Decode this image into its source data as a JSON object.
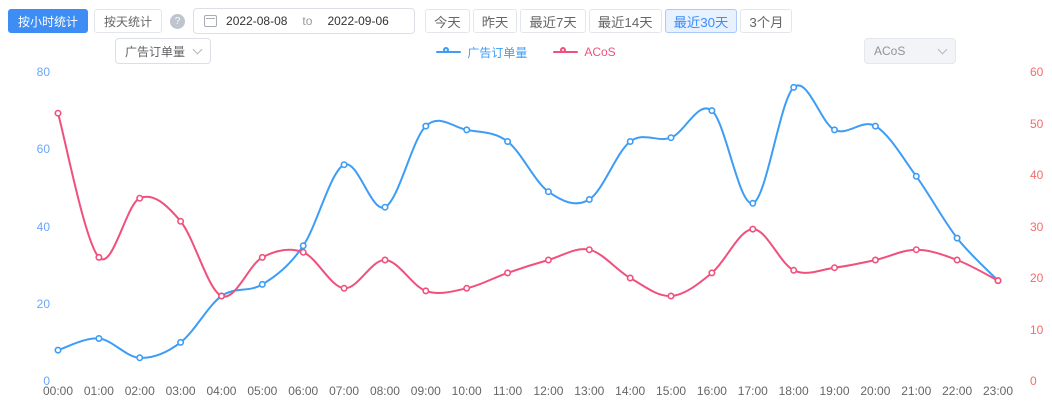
{
  "page": {
    "background": "#ffffff",
    "accent": "#3d8df5"
  },
  "toolbar": {
    "mode_buttons": [
      {
        "label": "按小时统计",
        "active": true
      },
      {
        "label": "按天统计",
        "active": false
      }
    ],
    "help_icon": "?",
    "date_range": {
      "start": "2022-08-08",
      "separator": "to",
      "end": "2022-09-06"
    },
    "quick_ranges": [
      {
        "label": "今天",
        "active": false
      },
      {
        "label": "昨天",
        "active": false
      },
      {
        "label": "最近7天",
        "active": false
      },
      {
        "label": "最近14天",
        "active": false
      },
      {
        "label": "最近30天",
        "active": true
      },
      {
        "label": "3个月",
        "active": false
      }
    ]
  },
  "controls": {
    "metric_select": {
      "value": "广告订单量"
    },
    "secondary_select": {
      "value": "ACoS"
    }
  },
  "legend": [
    {
      "label": "广告订单量",
      "color": "#3d9df6"
    },
    {
      "label": "ACoS",
      "color": "#f0517c"
    }
  ],
  "chart_data": {
    "type": "line",
    "smooth": true,
    "grid": false,
    "legend_position": "top-center",
    "x": [
      "00:00",
      "01:00",
      "02:00",
      "03:00",
      "04:00",
      "05:00",
      "06:00",
      "07:00",
      "08:00",
      "09:00",
      "10:00",
      "11:00",
      "12:00",
      "13:00",
      "14:00",
      "15:00",
      "16:00",
      "17:00",
      "18:00",
      "19:00",
      "20:00",
      "21:00",
      "22:00",
      "23:00"
    ],
    "series": [
      {
        "name": "广告订单量",
        "axis": "left",
        "color": "#3d9df6",
        "values": [
          8,
          11,
          6,
          10,
          22,
          25,
          35,
          56,
          45,
          66,
          65,
          62,
          49,
          47,
          62,
          63,
          70,
          46,
          76,
          65,
          66,
          53,
          37,
          26
        ]
      },
      {
        "name": "ACoS",
        "axis": "right",
        "color": "#f0517c",
        "values": [
          52,
          24,
          35.5,
          31,
          16.5,
          24,
          25,
          18,
          23.5,
          17.5,
          18,
          21,
          23.5,
          25.5,
          20,
          16.5,
          21,
          29.5,
          21.5,
          22,
          23.5,
          25.5,
          23.5,
          19.5
        ]
      }
    ],
    "left_axis": {
      "min": 0,
      "max": 80,
      "ticks": [
        0,
        20,
        40,
        60,
        80
      ],
      "color": "#69a6f9"
    },
    "right_axis": {
      "min": 0,
      "max": 60,
      "ticks": [
        0,
        10,
        20,
        30,
        40,
        50,
        60
      ],
      "color": "#f56c6c"
    },
    "x_axis_color": "#666666"
  }
}
